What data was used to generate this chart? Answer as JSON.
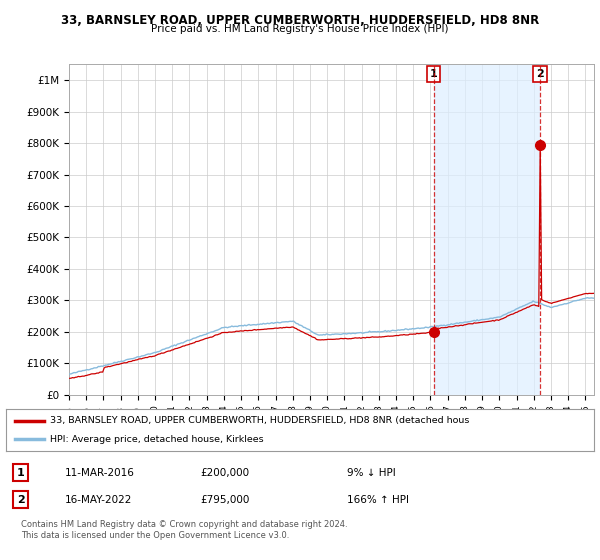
{
  "title": "33, BARNSLEY ROAD, UPPER CUMBERWORTH, HUDDERSFIELD, HD8 8NR",
  "subtitle": "Price paid vs. HM Land Registry's House Price Index (HPI)",
  "legend_label1": "33, BARNSLEY ROAD, UPPER CUMBERWORTH, HUDDERSFIELD, HD8 8NR (detached hous",
  "legend_label2": "HPI: Average price, detached house, Kirklees",
  "sale1_date": "11-MAR-2016",
  "sale1_price": 200000,
  "sale1_hpi_pct": "9% ↓ HPI",
  "sale2_date": "16-MAY-2022",
  "sale2_price": 795000,
  "sale2_hpi_pct": "166% ↑ HPI",
  "sale1_year": 2016.19,
  "sale2_year": 2022.37,
  "footer": "Contains HM Land Registry data © Crown copyright and database right 2024.\nThis data is licensed under the Open Government Licence v3.0.",
  "bg_color": "#ffffff",
  "shade_color": "#ddeeff",
  "line_color_red": "#cc0000",
  "line_color_blue": "#88bbdd",
  "grid_color": "#cccccc",
  "ylim": [
    0,
    1050000
  ],
  "xlim_start": 1995.0,
  "xlim_end": 2025.5
}
